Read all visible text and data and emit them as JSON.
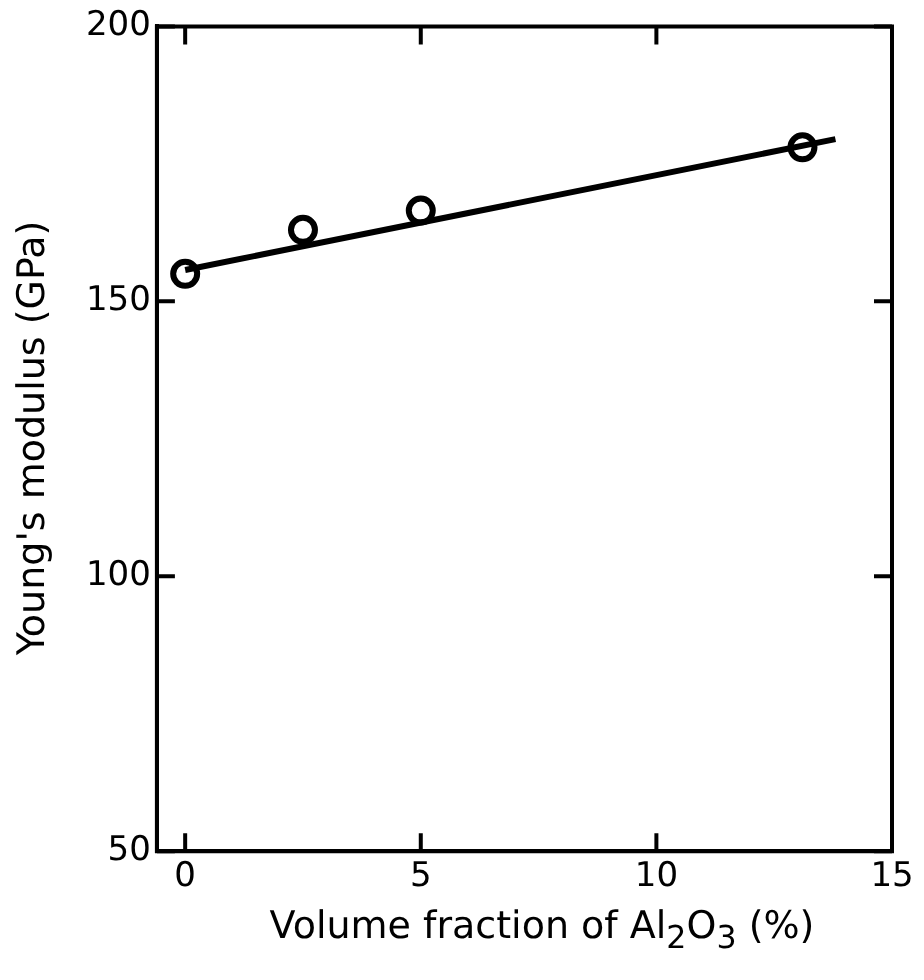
{
  "chart_data": {
    "type": "scatter",
    "xlabel": "Volume fraction of Al$_{2}$O$_{3}$ (%)",
    "ylabel": "Young's modulus (GPa)",
    "xlim": [
      -0.6,
      15
    ],
    "xticks": [
      0,
      5,
      10,
      15
    ],
    "ylim": [
      50,
      200
    ],
    "yticks": [
      50,
      100,
      150,
      200
    ],
    "grid": false,
    "legend": false,
    "series": [
      {
        "marker": "circle",
        "color": "#000000",
        "x": [
          0,
          2.5,
          5,
          13.1
        ],
        "values": [
          155,
          163,
          166.5,
          178
        ]
      },
      {
        "type": "line",
        "marker": "none",
        "line_style": "solid",
        "color": "#000000",
        "x": [
          0,
          13.8
        ],
        "values": [
          155.7,
          179.5
        ]
      }
    ]
  }
}
